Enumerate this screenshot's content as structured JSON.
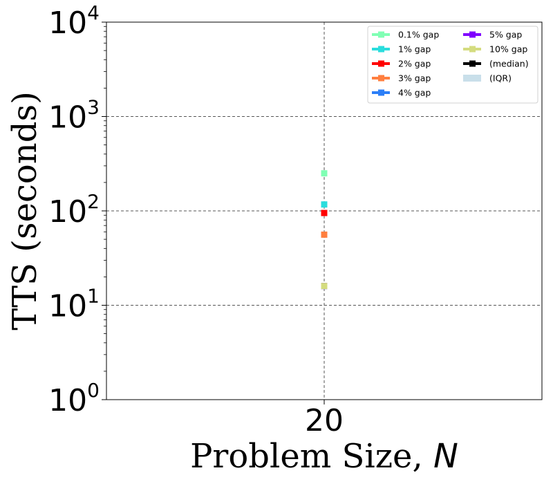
{
  "chart_data": {
    "type": "scatter",
    "xlabel_prefix": "Problem Size, ",
    "xlabel_var": "N",
    "ylabel": "TTS (seconds)",
    "x_ticks": [
      "20"
    ],
    "y_scale": "log",
    "ylim": [
      1,
      10000
    ],
    "y_tick_base": "10",
    "y_tick_exponents": [
      "0",
      "1",
      "2",
      "3",
      "4"
    ],
    "grid": true,
    "legend": "top-right",
    "series": [
      {
        "name": "0.1% gap",
        "color": "#80ffb4",
        "x": 20,
        "y": 250
      },
      {
        "name": "1% gap",
        "color": "#2adddd",
        "x": 20,
        "y": 117
      },
      {
        "name": "2% gap",
        "color": "#ff0000",
        "x": 20,
        "y": 95
      },
      {
        "name": "3% gap",
        "color": "#ff7f3f",
        "x": 20,
        "y": 56
      },
      {
        "name": "4% gap",
        "color": "#2c7ff7",
        "x": 20,
        "y": 16
      },
      {
        "name": "5% gap",
        "color": "#8000ff",
        "x": 20,
        "y": 16
      },
      {
        "name": "10% gap",
        "color": "#d4dc7f",
        "x": 20,
        "y": 16
      },
      {
        "name": "(median)",
        "color": "#000000"
      },
      {
        "name": "(IQR)",
        "color": "#c9dfea"
      }
    ]
  }
}
